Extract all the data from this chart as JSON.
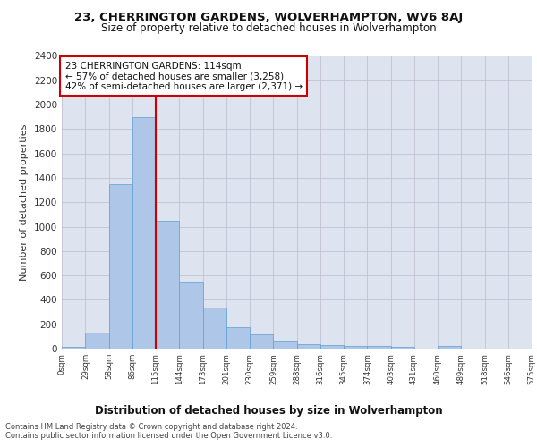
{
  "title": "23, CHERRINGTON GARDENS, WOLVERHAMPTON, WV6 8AJ",
  "subtitle": "Size of property relative to detached houses in Wolverhampton",
  "xlabel": "Distribution of detached houses by size in Wolverhampton",
  "ylabel": "Number of detached properties",
  "footnote1": "Contains HM Land Registry data © Crown copyright and database right 2024.",
  "footnote2": "Contains public sector information licensed under the Open Government Licence v3.0.",
  "annotation_line1": "23 CHERRINGTON GARDENS: 114sqm",
  "annotation_line2": "← 57% of detached houses are smaller (3,258)",
  "annotation_line3": "42% of semi-detached houses are larger (2,371) →",
  "bin_edges": [
    0,
    29,
    58,
    86,
    115,
    144,
    173,
    201,
    230,
    259,
    288,
    316,
    345,
    374,
    403,
    431,
    460,
    489,
    518,
    546,
    575
  ],
  "bar_heights": [
    15,
    130,
    1350,
    1900,
    1050,
    550,
    340,
    175,
    120,
    65,
    40,
    30,
    25,
    20,
    15,
    0,
    20,
    0,
    0,
    0
  ],
  "bar_color": "#aec6e8",
  "bar_edge_color": "#5a9fd4",
  "vline_color": "#cc0000",
  "vline_x": 115,
  "annotation_box_color": "#cc0000",
  "background_color": "#dde4f0",
  "ylim": [
    0,
    2400
  ],
  "yticks": [
    0,
    200,
    400,
    600,
    800,
    1000,
    1200,
    1400,
    1600,
    1800,
    2000,
    2200,
    2400
  ],
  "tick_labels": [
    "0sqm",
    "29sqm",
    "58sqm",
    "86sqm",
    "115sqm",
    "144sqm",
    "173sqm",
    "201sqm",
    "230sqm",
    "259sqm",
    "288sqm",
    "316sqm",
    "345sqm",
    "374sqm",
    "403sqm",
    "431sqm",
    "460sqm",
    "489sqm",
    "518sqm",
    "546sqm",
    "575sqm"
  ],
  "xlim_max": 575
}
